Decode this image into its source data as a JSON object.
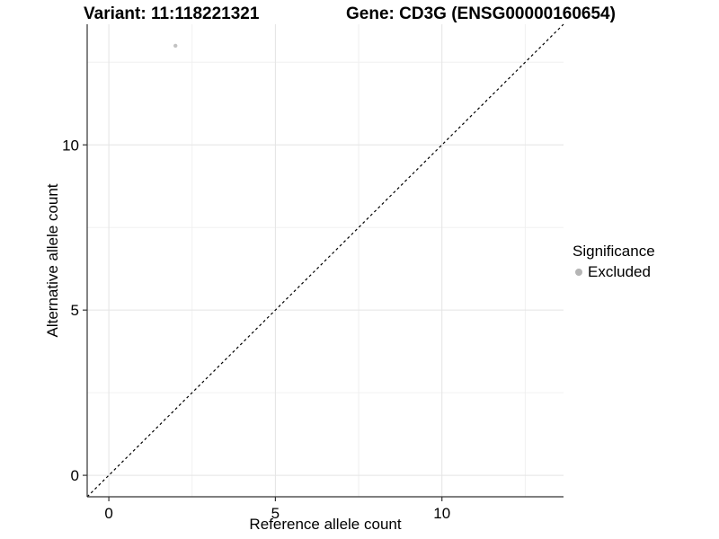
{
  "header": {
    "title_left": "Variant: 11:118221321",
    "title_right": "Gene: CD3G (ENSG00000160654)"
  },
  "chart_data": {
    "type": "scatter",
    "xlabel": "Reference allele count",
    "ylabel": "Alternative allele count",
    "xlim": [
      -0.65,
      13.65
    ],
    "ylim": [
      -0.65,
      13.65
    ],
    "xticks": [
      0,
      5,
      10
    ],
    "yticks": [
      0,
      5,
      10
    ],
    "minor_ticks_x": [
      2.5,
      7.5,
      12.5
    ],
    "minor_ticks_y": [
      2.5,
      7.5,
      12.5
    ],
    "grid": "major+minor",
    "series": [
      {
        "name": "Excluded",
        "color": "#c3c3c3",
        "point_radius": 2.2,
        "points": [
          {
            "x": 2,
            "y": 13
          }
        ]
      }
    ],
    "identity_line": {
      "type": "y=x",
      "style": "dashed",
      "color": "#000000"
    },
    "legend": {
      "title": "Significance",
      "position": "right",
      "items": [
        {
          "label": "Excluded",
          "color": "#b5b5b5"
        }
      ]
    }
  },
  "style": {
    "background": "#ffffff",
    "text_color": "#000000",
    "axis_color": "#333333",
    "grid_major_color": "#e4e4e4",
    "grid_minor_color": "#f0f0f0"
  }
}
